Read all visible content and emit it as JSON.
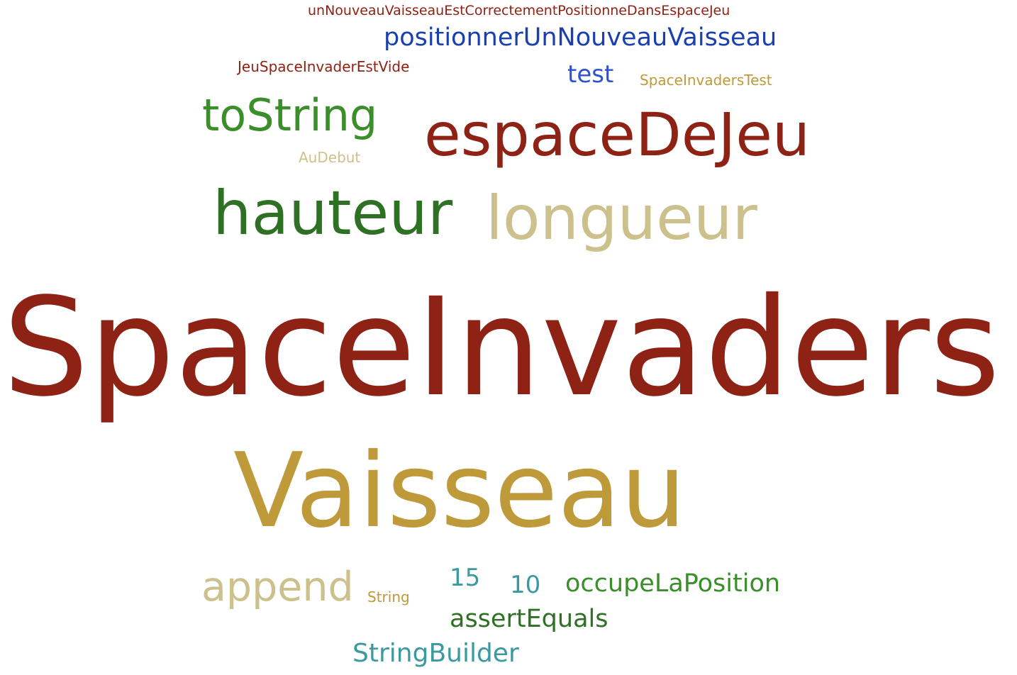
{
  "colors": {
    "dark_red": "#8E2214",
    "gold": "#BF9A3A",
    "khaki": "#CCC18C",
    "green": "#3A8F2A",
    "dark_green": "#2E7024",
    "blue": "#1A3FAF",
    "bright_blue": "#2E52D6",
    "teal": "#3A9AA0"
  },
  "words": [
    {
      "text": "unNouveauVaisseauEstCorrectementPositionneDansEspaceJeu",
      "color": "#8E2214"
    },
    {
      "text": "positionnerUnNouveauVaisseau",
      "color": "#1A3FAF"
    },
    {
      "text": "JeuSpaceInvaderEstVide",
      "color": "#8E2214"
    },
    {
      "text": "test",
      "color": "#2E52D6"
    },
    {
      "text": "SpaceInvadersTest",
      "color": "#BF9A3A"
    },
    {
      "text": "toString",
      "color": "#3A8F2A"
    },
    {
      "text": "espaceDeJeu",
      "color": "#8E2214"
    },
    {
      "text": "AuDebut",
      "color": "#CCC18C"
    },
    {
      "text": "hauteur",
      "color": "#2E7024"
    },
    {
      "text": "longueur",
      "color": "#CCC18C"
    },
    {
      "text": "SpaceInvaders",
      "color": "#8E2214"
    },
    {
      "text": "Vaisseau",
      "color": "#BF9A3A"
    },
    {
      "text": "append",
      "color": "#CCC18C"
    },
    {
      "text": "String",
      "color": "#BF9A3A"
    },
    {
      "text": "15",
      "color": "#3A9AA0"
    },
    {
      "text": "10",
      "color": "#3A9AA0"
    },
    {
      "text": "occupeLaPosition",
      "color": "#3A8F2A"
    },
    {
      "text": "assertEquals",
      "color": "#2E7024"
    },
    {
      "text": "StringBuilder",
      "color": "#3A9AA0"
    }
  ]
}
